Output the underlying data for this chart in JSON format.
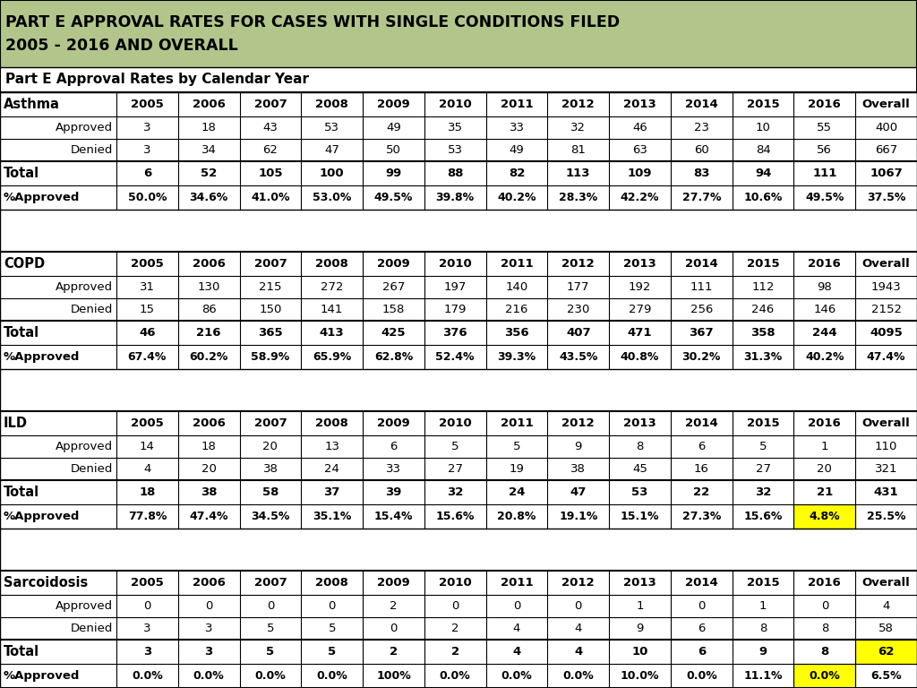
{
  "title_line1": "PART E APPROVAL RATES FOR CASES WITH SINGLE CONDITIONS FILED",
  "title_line2": "2005 - 2016 AND OVERALL",
  "subtitle": "Part E Approval Rates by Calendar Year",
  "title_bg": "#b2c68b",
  "years": [
    "2005",
    "2006",
    "2007",
    "2008",
    "2009",
    "2010",
    "2011",
    "2012",
    "2013",
    "2014",
    "2015",
    "2016",
    "Overall"
  ],
  "sections": [
    {
      "condition": "Asthma",
      "approved": [
        3,
        18,
        43,
        53,
        49,
        35,
        33,
        32,
        46,
        23,
        10,
        55,
        400
      ],
      "denied": [
        3,
        34,
        62,
        47,
        50,
        53,
        49,
        81,
        63,
        60,
        84,
        56,
        667
      ],
      "total": [
        6,
        52,
        105,
        100,
        99,
        88,
        82,
        113,
        109,
        83,
        94,
        111,
        1067
      ],
      "pct": [
        "50.0%",
        "34.6%",
        "41.0%",
        "53.0%",
        "49.5%",
        "39.8%",
        "40.2%",
        "28.3%",
        "42.2%",
        "27.7%",
        "10.6%",
        "49.5%",
        "37.5%"
      ],
      "highlight_pct": [],
      "highlight_total": []
    },
    {
      "condition": "COPD",
      "approved": [
        31,
        130,
        215,
        272,
        267,
        197,
        140,
        177,
        192,
        111,
        112,
        98,
        1943
      ],
      "denied": [
        15,
        86,
        150,
        141,
        158,
        179,
        216,
        230,
        279,
        256,
        246,
        146,
        2152
      ],
      "total": [
        46,
        216,
        365,
        413,
        425,
        376,
        356,
        407,
        471,
        367,
        358,
        244,
        4095
      ],
      "pct": [
        "67.4%",
        "60.2%",
        "58.9%",
        "65.9%",
        "62.8%",
        "52.4%",
        "39.3%",
        "43.5%",
        "40.8%",
        "30.2%",
        "31.3%",
        "40.2%",
        "47.4%"
      ],
      "highlight_pct": [],
      "highlight_total": []
    },
    {
      "condition": "ILD",
      "approved": [
        14,
        18,
        20,
        13,
        6,
        5,
        5,
        9,
        8,
        6,
        5,
        1,
        110
      ],
      "denied": [
        4,
        20,
        38,
        24,
        33,
        27,
        19,
        38,
        45,
        16,
        27,
        20,
        321
      ],
      "total": [
        18,
        38,
        58,
        37,
        39,
        32,
        24,
        47,
        53,
        22,
        32,
        21,
        431
      ],
      "pct": [
        "77.8%",
        "47.4%",
        "34.5%",
        "35.1%",
        "15.4%",
        "15.6%",
        "20.8%",
        "19.1%",
        "15.1%",
        "27.3%",
        "15.6%",
        "4.8%",
        "25.5%"
      ],
      "highlight_pct": [
        11
      ],
      "highlight_total": []
    },
    {
      "condition": "Sarcoidosis",
      "approved": [
        0,
        0,
        0,
        0,
        2,
        0,
        0,
        0,
        1,
        0,
        1,
        0,
        4
      ],
      "denied": [
        3,
        3,
        5,
        5,
        0,
        2,
        4,
        4,
        9,
        6,
        8,
        8,
        58
      ],
      "total": [
        3,
        3,
        5,
        5,
        2,
        2,
        4,
        4,
        10,
        6,
        9,
        8,
        62
      ],
      "pct": [
        "0.0%",
        "0.0%",
        "0.0%",
        "0.0%",
        "100%",
        "0.0%",
        "0.0%",
        "0.0%",
        "10.0%",
        "0.0%",
        "11.1%",
        "0.0%",
        "6.5%"
      ],
      "highlight_pct": [
        11
      ],
      "highlight_total": [
        12
      ]
    }
  ]
}
